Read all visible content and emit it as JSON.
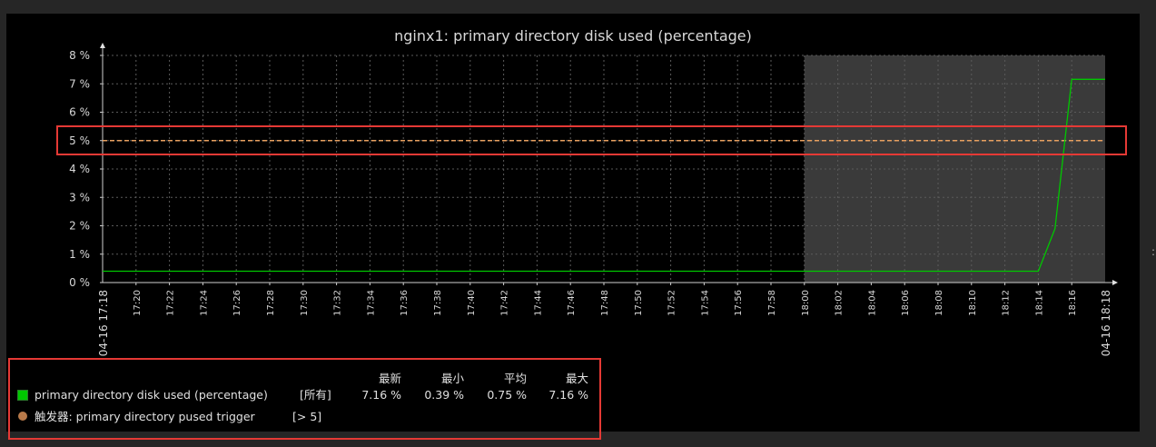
{
  "chart_data": {
    "type": "line",
    "title": "nginx1: primary directory disk used (percentage)",
    "y_ticks": [
      "0 %",
      "1 %",
      "2 %",
      "3 %",
      "4 %",
      "5 %",
      "6 %",
      "7 %",
      "8 %"
    ],
    "ylim": [
      0,
      8
    ],
    "x_start_label": "04-16 17:18",
    "x_end_label": "04-16 18:18",
    "x_ticks": [
      "17:20",
      "17:22",
      "17:24",
      "17:26",
      "17:28",
      "17:30",
      "17:32",
      "17:34",
      "17:36",
      "17:38",
      "17:40",
      "17:42",
      "17:44",
      "17:46",
      "17:48",
      "17:50",
      "17:52",
      "17:54",
      "17:56",
      "17:58",
      "18:00",
      "18:02",
      "18:04",
      "18:06",
      "18:08",
      "18:10",
      "18:12",
      "18:14",
      "18:16"
    ],
    "x_range": [
      "17:18",
      "18:18"
    ],
    "highlight_range": [
      "18:00",
      "18:18"
    ],
    "series": [
      {
        "name": "primary directory disk used (percentage)",
        "color": "#00c800",
        "points": [
          [
            "17:18",
            0.4
          ],
          [
            "18:14",
            0.4
          ],
          [
            "18:15",
            1.9
          ],
          [
            "18:16",
            7.16
          ],
          [
            "18:18",
            7.16
          ]
        ]
      }
    ],
    "trigger": {
      "value": 5,
      "color": "#e8a060"
    }
  },
  "legend": {
    "headers": [
      "最新",
      "最小",
      "平均",
      "最大"
    ],
    "items": [
      {
        "label": "primary directory disk used (percentage)",
        "scope": "[所有]",
        "last": "7.16 %",
        "min": "0.39 %",
        "avg": "0.75 %",
        "max": "7.16 %"
      },
      {
        "label": "触发器: primary directory pused trigger",
        "cond": "[> 5]"
      }
    ]
  }
}
